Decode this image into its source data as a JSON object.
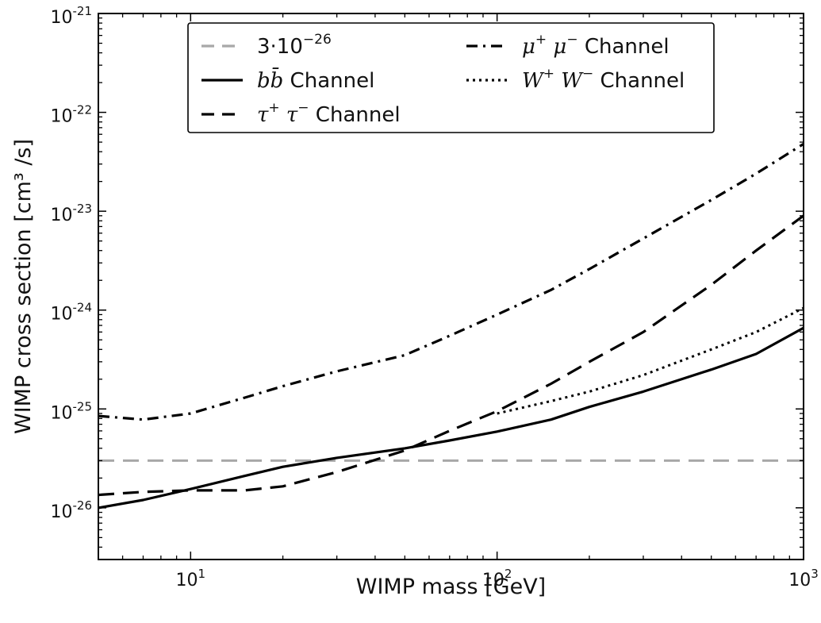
{
  "chart_data": {
    "type": "line",
    "xlabel": "WIMP mass [GeV]",
    "ylabel": "WIMP cross section [cm³ /s]",
    "xscale": "log",
    "yscale": "log",
    "xlim": [
      5,
      1000
    ],
    "ylim": [
      3e-27,
      1e-21
    ],
    "x_ticks": [
      {
        "base": "10",
        "exp": "1",
        "value": 10
      },
      {
        "base": "10",
        "exp": "2",
        "value": 100
      },
      {
        "base": "10",
        "exp": "3",
        "value": 1000
      }
    ],
    "y_ticks": [
      {
        "base": "10",
        "exp": "-26",
        "value": 1e-26
      },
      {
        "base": "10",
        "exp": "-25",
        "value": 1e-25
      },
      {
        "base": "10",
        "exp": "-24",
        "value": 1e-24
      },
      {
        "base": "10",
        "exp": "-23",
        "value": 1e-23
      },
      {
        "base": "10",
        "exp": "-22",
        "value": 1e-22
      },
      {
        "base": "10",
        "exp": "-21",
        "value": 1e-21
      }
    ],
    "legend": {
      "position": "top",
      "entries": [
        {
          "key": "ref",
          "label_main": "3·10",
          "label_sup": "−26",
          "label_suffix": ""
        },
        {
          "key": "bb",
          "label_main": "bb̄",
          "label_sup": "",
          "label_suffix": " Channel"
        },
        {
          "key": "tautau",
          "label_main": "τ",
          "label_sup": "+",
          "label_main2": " τ",
          "label_sup2": "−",
          "label_suffix": "  Channel"
        },
        {
          "key": "mumu",
          "label_main": "μ",
          "label_sup": "+",
          "label_main2": " μ",
          "label_sup2": "−",
          "label_suffix": "  Channel"
        },
        {
          "key": "ww",
          "label_main": "W",
          "label_sup": "+",
          "label_main2": " W",
          "label_sup2": "−",
          "label_suffix": "  Channel"
        }
      ]
    },
    "series": [
      {
        "key": "ref",
        "style": "dashed",
        "color": "#a8a8a8",
        "x": [
          5,
          1000
        ],
        "y": [
          3e-26,
          3e-26
        ]
      },
      {
        "key": "bb",
        "style": "solid",
        "color": "#000000",
        "x": [
          5,
          7,
          10,
          15,
          20,
          30,
          50,
          70,
          100,
          150,
          200,
          300,
          500,
          700,
          1000
        ],
        "y": [
          1e-26,
          1.2e-26,
          1.55e-26,
          2.1e-26,
          2.6e-26,
          3.2e-26,
          4e-26,
          4.8e-26,
          5.9e-26,
          7.8e-26,
          1.05e-25,
          1.5e-25,
          2.5e-25,
          3.6e-25,
          6.6e-25
        ]
      },
      {
        "key": "tautau",
        "style": "dashed",
        "color": "#000000",
        "x": [
          5,
          7,
          10,
          15,
          20,
          30,
          50,
          70,
          100,
          150,
          200,
          300,
          500,
          700,
          1000
        ],
        "y": [
          1.35e-26,
          1.45e-26,
          1.5e-26,
          1.5e-26,
          1.65e-26,
          2.3e-26,
          3.8e-26,
          6e-26,
          9.5e-26,
          1.8e-25,
          3e-25,
          6e-25,
          1.8e-24,
          4e-24,
          9e-24
        ]
      },
      {
        "key": "mumu",
        "style": "dashdot",
        "color": "#000000",
        "x": [
          5,
          7,
          10,
          15,
          20,
          30,
          50,
          70,
          100,
          150,
          200,
          300,
          500,
          700,
          1000
        ],
        "y": [
          8.5e-26,
          7.8e-26,
          9e-26,
          1.3e-25,
          1.7e-25,
          2.4e-25,
          3.5e-25,
          5.5e-25,
          9e-25,
          1.6e-24,
          2.6e-24,
          5.3e-24,
          1.3e-23,
          2.4e-23,
          4.8e-23
        ]
      },
      {
        "key": "ww",
        "style": "dotted",
        "color": "#000000",
        "x": [
          100,
          150,
          200,
          300,
          500,
          700,
          1000
        ],
        "y": [
          9e-26,
          1.2e-25,
          1.5e-25,
          2.2e-25,
          4e-25,
          6e-25,
          1.05e-24
        ]
      }
    ]
  }
}
